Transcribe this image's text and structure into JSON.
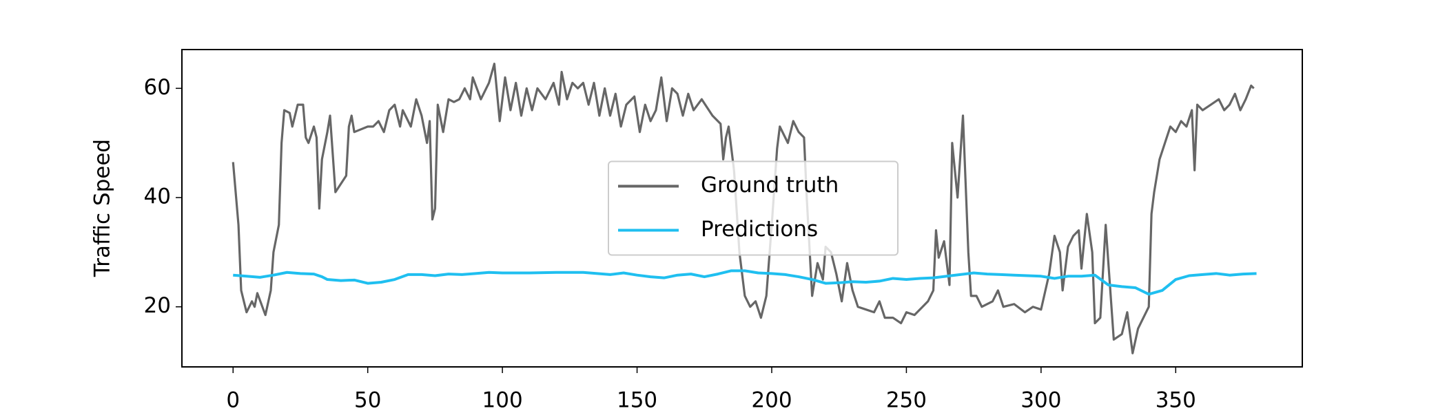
{
  "chart_data": {
    "type": "line",
    "ylabel": "Traffic Speed",
    "xlim": [
      -19,
      397
    ],
    "ylim": [
      9,
      67.1
    ],
    "xticks": [
      0,
      50,
      100,
      150,
      200,
      250,
      300,
      350
    ],
    "yticks": [
      20,
      40,
      60
    ],
    "legend": "center",
    "series": [
      {
        "name": "Ground truth",
        "color": "#666666",
        "x": [
          0,
          2,
          3,
          5,
          7,
          8,
          9,
          12,
          14,
          15,
          17,
          18,
          19,
          21,
          22,
          24,
          26,
          27,
          28,
          30,
          31,
          32,
          33,
          35,
          36,
          38,
          42,
          43,
          44,
          45,
          50,
          52,
          54,
          56,
          58,
          60,
          62,
          63,
          64,
          66,
          68,
          70,
          72,
          73,
          74,
          75,
          76,
          78,
          80,
          82,
          84,
          86,
          88,
          89,
          92,
          95,
          97,
          99,
          101,
          103,
          105,
          107,
          109,
          111,
          113,
          116,
          119,
          121,
          122,
          124,
          126,
          128,
          130,
          132,
          134,
          136,
          138,
          140,
          142,
          144,
          146,
          149,
          151,
          153,
          155,
          157,
          159,
          161,
          163,
          165,
          167,
          169,
          171,
          174,
          178,
          181,
          182,
          183,
          184,
          186,
          188,
          190,
          192,
          194,
          196,
          198,
          200,
          202,
          203,
          206,
          208,
          210,
          212,
          213,
          215,
          217,
          219,
          220,
          222,
          224,
          226,
          228,
          230,
          232,
          235,
          238,
          240,
          242,
          245,
          248,
          250,
          253,
          256,
          258,
          260,
          261,
          262,
          264,
          266,
          267,
          269,
          271,
          273,
          274,
          276,
          278,
          282,
          284,
          286,
          290,
          294,
          297,
          300,
          303,
          305,
          307,
          308,
          310,
          312,
          314,
          315,
          317,
          319,
          320,
          322,
          324,
          327,
          330,
          332,
          334,
          336,
          340,
          341,
          342,
          344,
          346,
          348,
          350,
          352,
          354,
          356,
          357,
          358,
          360,
          363,
          366,
          368,
          370,
          372,
          374,
          376,
          378,
          379
        ],
        "values": [
          46.5,
          35,
          23,
          19,
          21,
          20,
          22.5,
          18.5,
          23,
          30,
          35,
          50,
          56,
          55.5,
          53,
          57,
          57,
          51,
          50,
          53,
          51,
          38,
          47,
          52,
          55,
          41,
          44,
          53,
          55,
          52,
          53,
          53,
          54,
          52,
          56,
          57,
          53,
          56,
          55,
          53,
          58,
          55,
          50,
          54,
          36,
          38,
          57,
          52,
          58,
          57.5,
          58,
          60,
          58,
          62,
          58,
          61,
          64.5,
          54,
          62,
          56,
          61,
          55,
          60,
          56,
          60,
          58,
          61,
          57,
          63,
          58,
          61,
          60,
          61,
          57,
          61,
          55,
          60,
          55,
          59,
          53,
          57,
          58.5,
          52,
          57,
          54,
          56,
          62,
          54,
          60,
          59,
          55,
          59,
          56,
          58,
          55,
          53.5,
          47,
          51,
          53,
          45,
          30,
          22,
          20,
          21,
          18,
          22,
          35,
          49,
          53,
          50,
          54,
          52,
          51,
          40,
          22,
          28,
          25,
          31,
          30,
          26,
          21,
          28,
          23,
          20,
          19.5,
          19,
          21,
          18,
          18,
          17,
          19,
          18.5,
          20,
          21,
          23,
          34,
          29,
          32,
          24,
          50,
          40,
          55,
          30,
          22,
          22,
          20,
          21,
          23,
          20,
          20.5,
          19,
          20,
          19.5,
          26,
          33,
          30,
          23,
          31,
          33,
          34,
          27,
          37,
          30,
          17,
          18,
          35,
          14,
          15,
          19,
          11.5,
          16,
          20,
          37,
          41,
          47,
          50,
          53,
          52,
          54,
          53,
          56,
          45,
          57,
          56,
          57,
          58,
          56,
          57,
          59,
          56,
          58,
          60.5,
          60
        ]
      },
      {
        "name": "Predictions",
        "color": "#1fbff0",
        "x": [
          0,
          5,
          10,
          15,
          20,
          25,
          30,
          33,
          35,
          40,
          45,
          50,
          55,
          60,
          65,
          70,
          75,
          80,
          85,
          90,
          95,
          100,
          110,
          120,
          130,
          140,
          145,
          150,
          155,
          160,
          165,
          170,
          175,
          180,
          185,
          190,
          195,
          200,
          205,
          210,
          215,
          220,
          225,
          230,
          235,
          240,
          245,
          250,
          255,
          260,
          265,
          270,
          275,
          280,
          285,
          290,
          295,
          300,
          305,
          310,
          315,
          320,
          325,
          330,
          335,
          340,
          345,
          350,
          355,
          360,
          365,
          370,
          375,
          380
        ],
        "values": [
          25.8,
          25.6,
          25.4,
          25.8,
          26.3,
          26.1,
          26,
          25.5,
          25,
          24.8,
          24.9,
          24.3,
          24.5,
          25,
          25.9,
          25.9,
          25.7,
          26,
          25.9,
          26.1,
          26.3,
          26.2,
          26.2,
          26.3,
          26.3,
          25.9,
          26.2,
          25.8,
          25.5,
          25.3,
          25.8,
          26,
          25.5,
          26,
          26.6,
          26.6,
          26.2,
          26.1,
          25.9,
          25.5,
          25,
          24.3,
          24.4,
          24.6,
          24.5,
          24.7,
          25.2,
          25,
          25.2,
          25.3,
          25.6,
          25.9,
          26.2,
          26,
          25.9,
          25.8,
          25.7,
          25.6,
          25.2,
          25.6,
          25.6,
          25.8,
          24,
          23.7,
          23.5,
          22.3,
          23,
          25,
          25.7,
          25.9,
          26.1,
          25.8,
          26,
          26.1
        ]
      }
    ]
  }
}
